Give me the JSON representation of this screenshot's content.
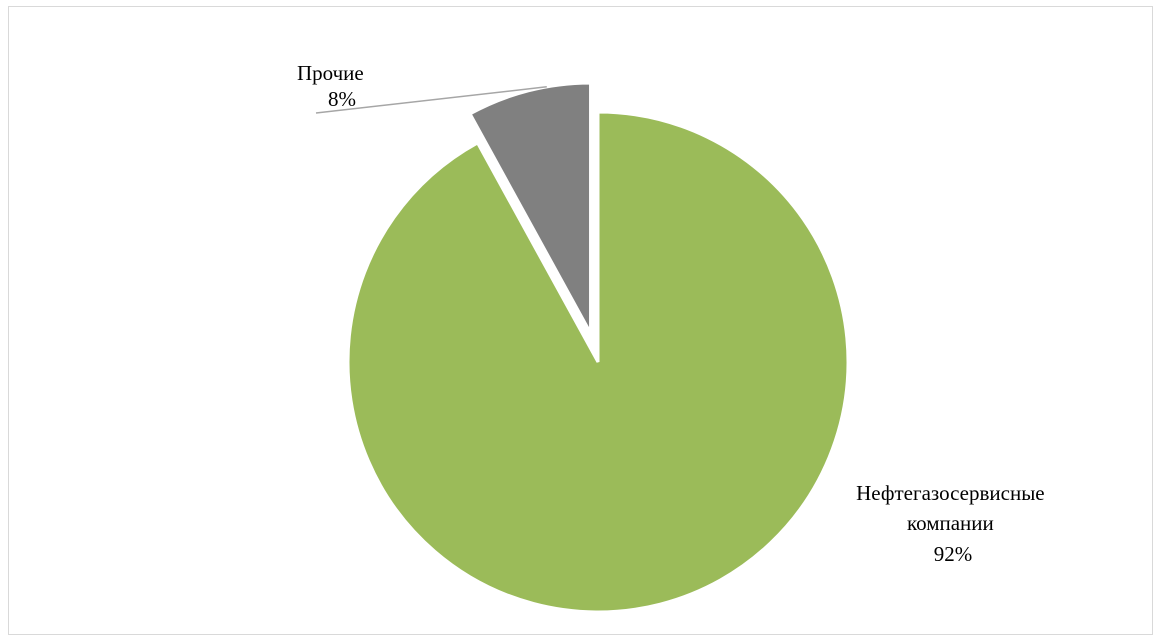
{
  "chart_data": {
    "type": "pie",
    "title": "",
    "series": [
      {
        "values": [
          {
            "label": "Прочие",
            "value": 8,
            "value_label": "8%",
            "color": "#808080",
            "exploded": true
          },
          {
            "label_lines": [
              "Нефтегазосервисные",
              "компании"
            ],
            "label": "Нефтегазосервисные компании",
            "value": 92,
            "value_label": "92%",
            "color": "#9bbb59",
            "exploded": false
          }
        ]
      }
    ],
    "legend": "none",
    "start_angle": "12 o'clock",
    "direction": "counter-clockwise for Прочие"
  }
}
